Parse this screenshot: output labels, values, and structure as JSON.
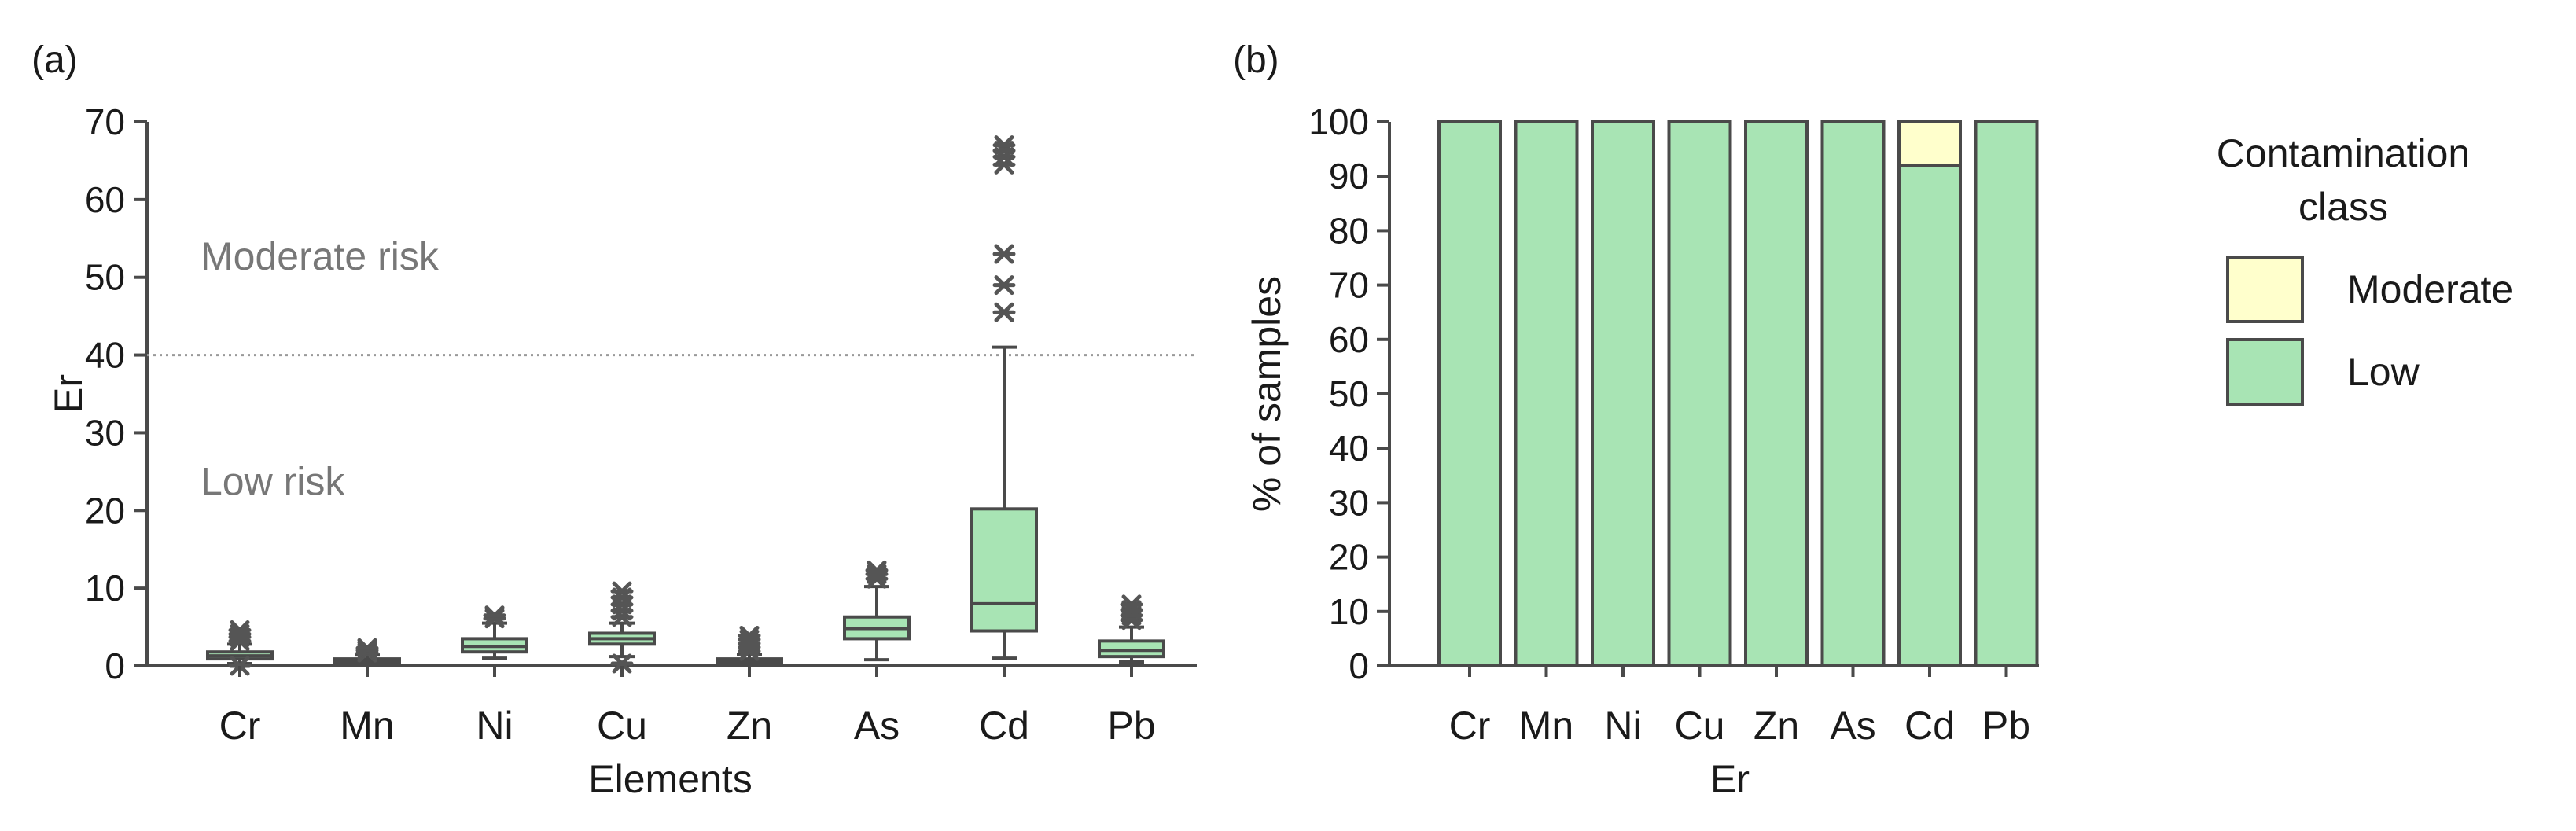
{
  "colors": {
    "box_fill": "#a8e4b4",
    "low_fill": "#a8e4b4",
    "moderate_fill": "#ffffcc",
    "stroke": "#4a4a4a",
    "risk_text": "#777777",
    "threshold_line": "#999999"
  },
  "chart_data": [
    {
      "id": "a",
      "panel_label": "(a)",
      "type": "box",
      "xlabel": "Elements",
      "ylabel": "Er",
      "ylim": [
        0,
        70
      ],
      "yticks": [
        "0",
        "10",
        "20",
        "30",
        "40",
        "50",
        "60",
        "70"
      ],
      "categories": [
        "Cr",
        "Mn",
        "Ni",
        "Cu",
        "Zn",
        "As",
        "Cd",
        "Pb"
      ],
      "threshold": {
        "value": 40,
        "above_label": "Moderate risk",
        "below_label": "Low risk"
      },
      "boxes": [
        {
          "name": "Cr",
          "whisker_low": 0.3,
          "q1": 0.9,
          "median": 1.3,
          "q3": 1.8,
          "whisker_high": 2.8,
          "outliers": [
            3.2,
            3.7,
            4.1,
            4.6,
            0.0
          ]
        },
        {
          "name": "Mn",
          "whisker_low": 0.2,
          "q1": 0.5,
          "median": 0.7,
          "q3": 0.9,
          "whisker_high": 1.4,
          "outliers": [
            1.7,
            2.0,
            2.3
          ]
        },
        {
          "name": "Ni",
          "whisker_low": 1.0,
          "q1": 1.8,
          "median": 2.5,
          "q3": 3.5,
          "whisker_high": 5.5,
          "outliers": [
            6.1,
            6.5
          ]
        },
        {
          "name": "Cu",
          "whisker_low": 1.2,
          "q1": 2.8,
          "median": 3.5,
          "q3": 4.2,
          "whisker_high": 5.5,
          "outliers": [
            6.3,
            7.1,
            7.9,
            8.8,
            9.6,
            0.3
          ]
        },
        {
          "name": "Zn",
          "whisker_low": 0.2,
          "q1": 0.4,
          "median": 0.7,
          "q3": 0.9,
          "whisker_high": 1.5,
          "outliers": [
            1.9,
            2.4,
            2.9,
            3.4,
            3.9
          ]
        },
        {
          "name": "As",
          "whisker_low": 0.8,
          "q1": 3.5,
          "median": 4.8,
          "q3": 6.3,
          "whisker_high": 10.2,
          "outliers": [
            11.2,
            11.8,
            12.3
          ]
        },
        {
          "name": "Cd",
          "whisker_low": 1.0,
          "q1": 4.5,
          "median": 8.0,
          "q3": 20.2,
          "whisker_high": 41.0,
          "outliers": [
            45.5,
            49.0,
            53.0,
            64.5,
            65.5,
            66.3,
            67.0
          ]
        },
        {
          "name": "Pb",
          "whisker_low": 0.5,
          "q1": 1.2,
          "median": 2.0,
          "q3": 3.2,
          "whisker_high": 5.0,
          "outliers": [
            5.9,
            6.5,
            7.2,
            7.9
          ]
        }
      ]
    },
    {
      "id": "b",
      "panel_label": "(b)",
      "type": "stacked_bar",
      "xlabel": "Er",
      "ylabel": "% of samples",
      "ylim": [
        0,
        100
      ],
      "yticks": [
        "0",
        "10",
        "20",
        "30",
        "40",
        "50",
        "60",
        "70",
        "80",
        "90",
        "100"
      ],
      "categories": [
        "Cr",
        "Mn",
        "Ni",
        "Cu",
        "Zn",
        "As",
        "Cd",
        "Pb"
      ],
      "series": [
        {
          "name": "Low",
          "color_key": "low_fill",
          "values": [
            100,
            100,
            100,
            100,
            100,
            100,
            92,
            100
          ]
        },
        {
          "name": "Moderate",
          "color_key": "moderate_fill",
          "values": [
            0,
            0,
            0,
            0,
            0,
            0,
            8,
            0
          ]
        }
      ],
      "legend": {
        "title_lines": [
          "Contamination",
          "class"
        ],
        "items": [
          {
            "label": "Moderate",
            "color_key": "moderate_fill"
          },
          {
            "label": "Low",
            "color_key": "low_fill"
          }
        ],
        "placement": "right"
      }
    }
  ]
}
